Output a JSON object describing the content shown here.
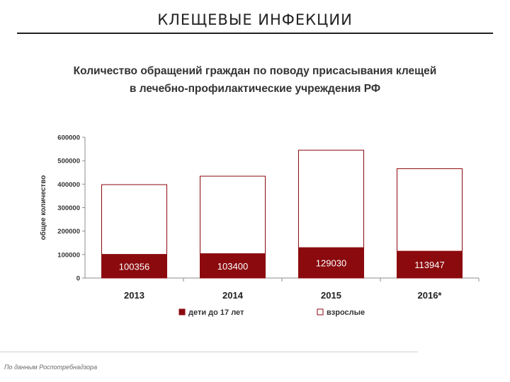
{
  "slide": {
    "title": "КЛЕЩЕВЫЕ ИНФЕКЦИИ",
    "source": "По данным Роспотребнадзора"
  },
  "chart_data": {
    "type": "bar",
    "stacked": true,
    "title_lines": [
      "Количество обращений граждан по поводу присасывания клещей",
      "в лечебно-профилактические учреждения РФ"
    ],
    "ylabel": "общее количество",
    "xlabel": "",
    "ylim": [
      0,
      600000
    ],
    "yticks": [
      "0",
      "100000",
      "200000",
      "300000",
      "400000",
      "500000",
      "600000"
    ],
    "grid": false,
    "legend_position": "bottom",
    "categories": [
      "2013",
      "2014",
      "2015",
      "2016*"
    ],
    "series": [
      {
        "name": "дети до 17 лет",
        "color": "#8b0a0e",
        "values": [
          100356,
          103400,
          129030,
          113947
        ],
        "labels": [
          "100356",
          "103400",
          "129030",
          "113947"
        ]
      },
      {
        "name": "взрослые",
        "color": "#ffffff",
        "stroke": "#8b0a0e",
        "values": [
          297644,
          330600,
          415970,
          352053
        ]
      }
    ]
  }
}
